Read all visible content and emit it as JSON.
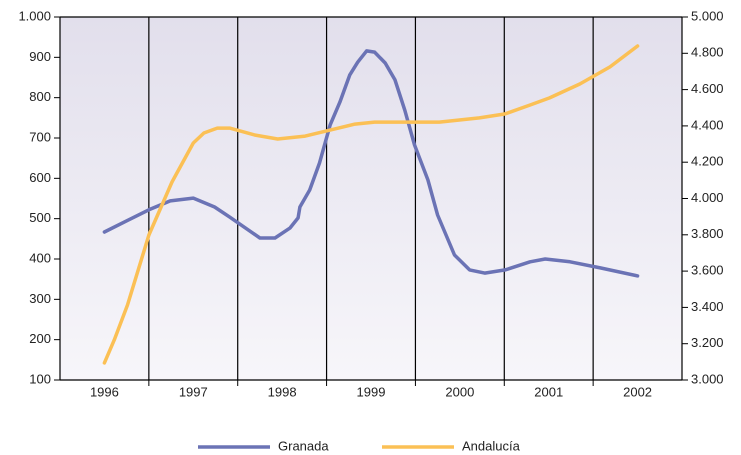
{
  "chart_data": {
    "type": "line",
    "xlim": [
      1995.5,
      2002.5
    ],
    "xticks": [
      1996,
      1997,
      1998,
      1999,
      2000,
      2001,
      2002
    ],
    "ylim": [
      100,
      1000
    ],
    "yticks": [
      100,
      200,
      300,
      400,
      500,
      600,
      700,
      800,
      900,
      {
        "value": 1000,
        "label": "1.000"
      }
    ],
    "y2lim": [
      3000,
      5000
    ],
    "y2ticks": [
      {
        "value": 3000,
        "label": "3.000"
      },
      {
        "value": 3200,
        "label": "3.200"
      },
      {
        "value": 3400,
        "label": "3.400"
      },
      {
        "value": 3600,
        "label": "3.600"
      },
      {
        "value": 3800,
        "label": "3.800"
      },
      {
        "value": 4000,
        "label": "4.000"
      },
      {
        "value": 4200,
        "label": "4.200"
      },
      {
        "value": 4400,
        "label": "4.400"
      },
      {
        "value": 4600,
        "label": "4.600"
      },
      {
        "value": 4800,
        "label": "4.800"
      },
      {
        "value": 5000,
        "label": "5.000"
      }
    ],
    "legend": "bottom",
    "series": [
      {
        "name": "Granada",
        "color": "#6b73b5",
        "axis": "y",
        "x": [
          1996.0,
          1996.5,
          1996.74,
          1997.0,
          1997.24,
          1997.41,
          1997.75,
          1997.92,
          1998.09,
          1998.18,
          1998.2,
          1998.31,
          1998.42,
          1998.54,
          1998.65,
          1998.76,
          1998.85,
          1998.95,
          1999.04,
          1999.16,
          1999.27,
          1999.38,
          1999.49,
          1999.64,
          1999.75,
          1999.94,
          2000.11,
          2000.28,
          2000.51,
          2000.79,
          2000.96,
          2001.24,
          2001.58,
          2002.0
        ],
        "values": [
          467,
          522,
          544,
          551,
          529,
          504,
          452,
          452,
          477,
          502,
          529,
          571,
          638,
          732,
          789,
          856,
          888,
          916,
          913,
          886,
          844,
          769,
          683,
          596,
          509,
          410,
          373,
          365,
          373,
          393,
          400,
          393,
          378,
          358
        ]
      },
      {
        "name": "Andalucía",
        "color": "#fbc055",
        "axis": "y2",
        "x": [
          1996.0,
          1996.11,
          1996.26,
          1996.5,
          1996.76,
          1997.0,
          1997.12,
          1997.27,
          1997.41,
          1997.69,
          1997.95,
          1998.26,
          1998.54,
          1998.82,
          1999.04,
          1999.32,
          1999.77,
          2000.22,
          2000.51,
          2000.79,
          2001.01,
          2001.35,
          2001.69,
          2002.0
        ],
        "values": [
          3094,
          3220,
          3413,
          3799,
          4091,
          4306,
          4361,
          4388,
          4388,
          4350,
          4328,
          4344,
          4377,
          4410,
          4421,
          4421,
          4421,
          4444,
          4466,
          4515,
          4554,
          4631,
          4725,
          4840
        ]
      }
    ]
  }
}
